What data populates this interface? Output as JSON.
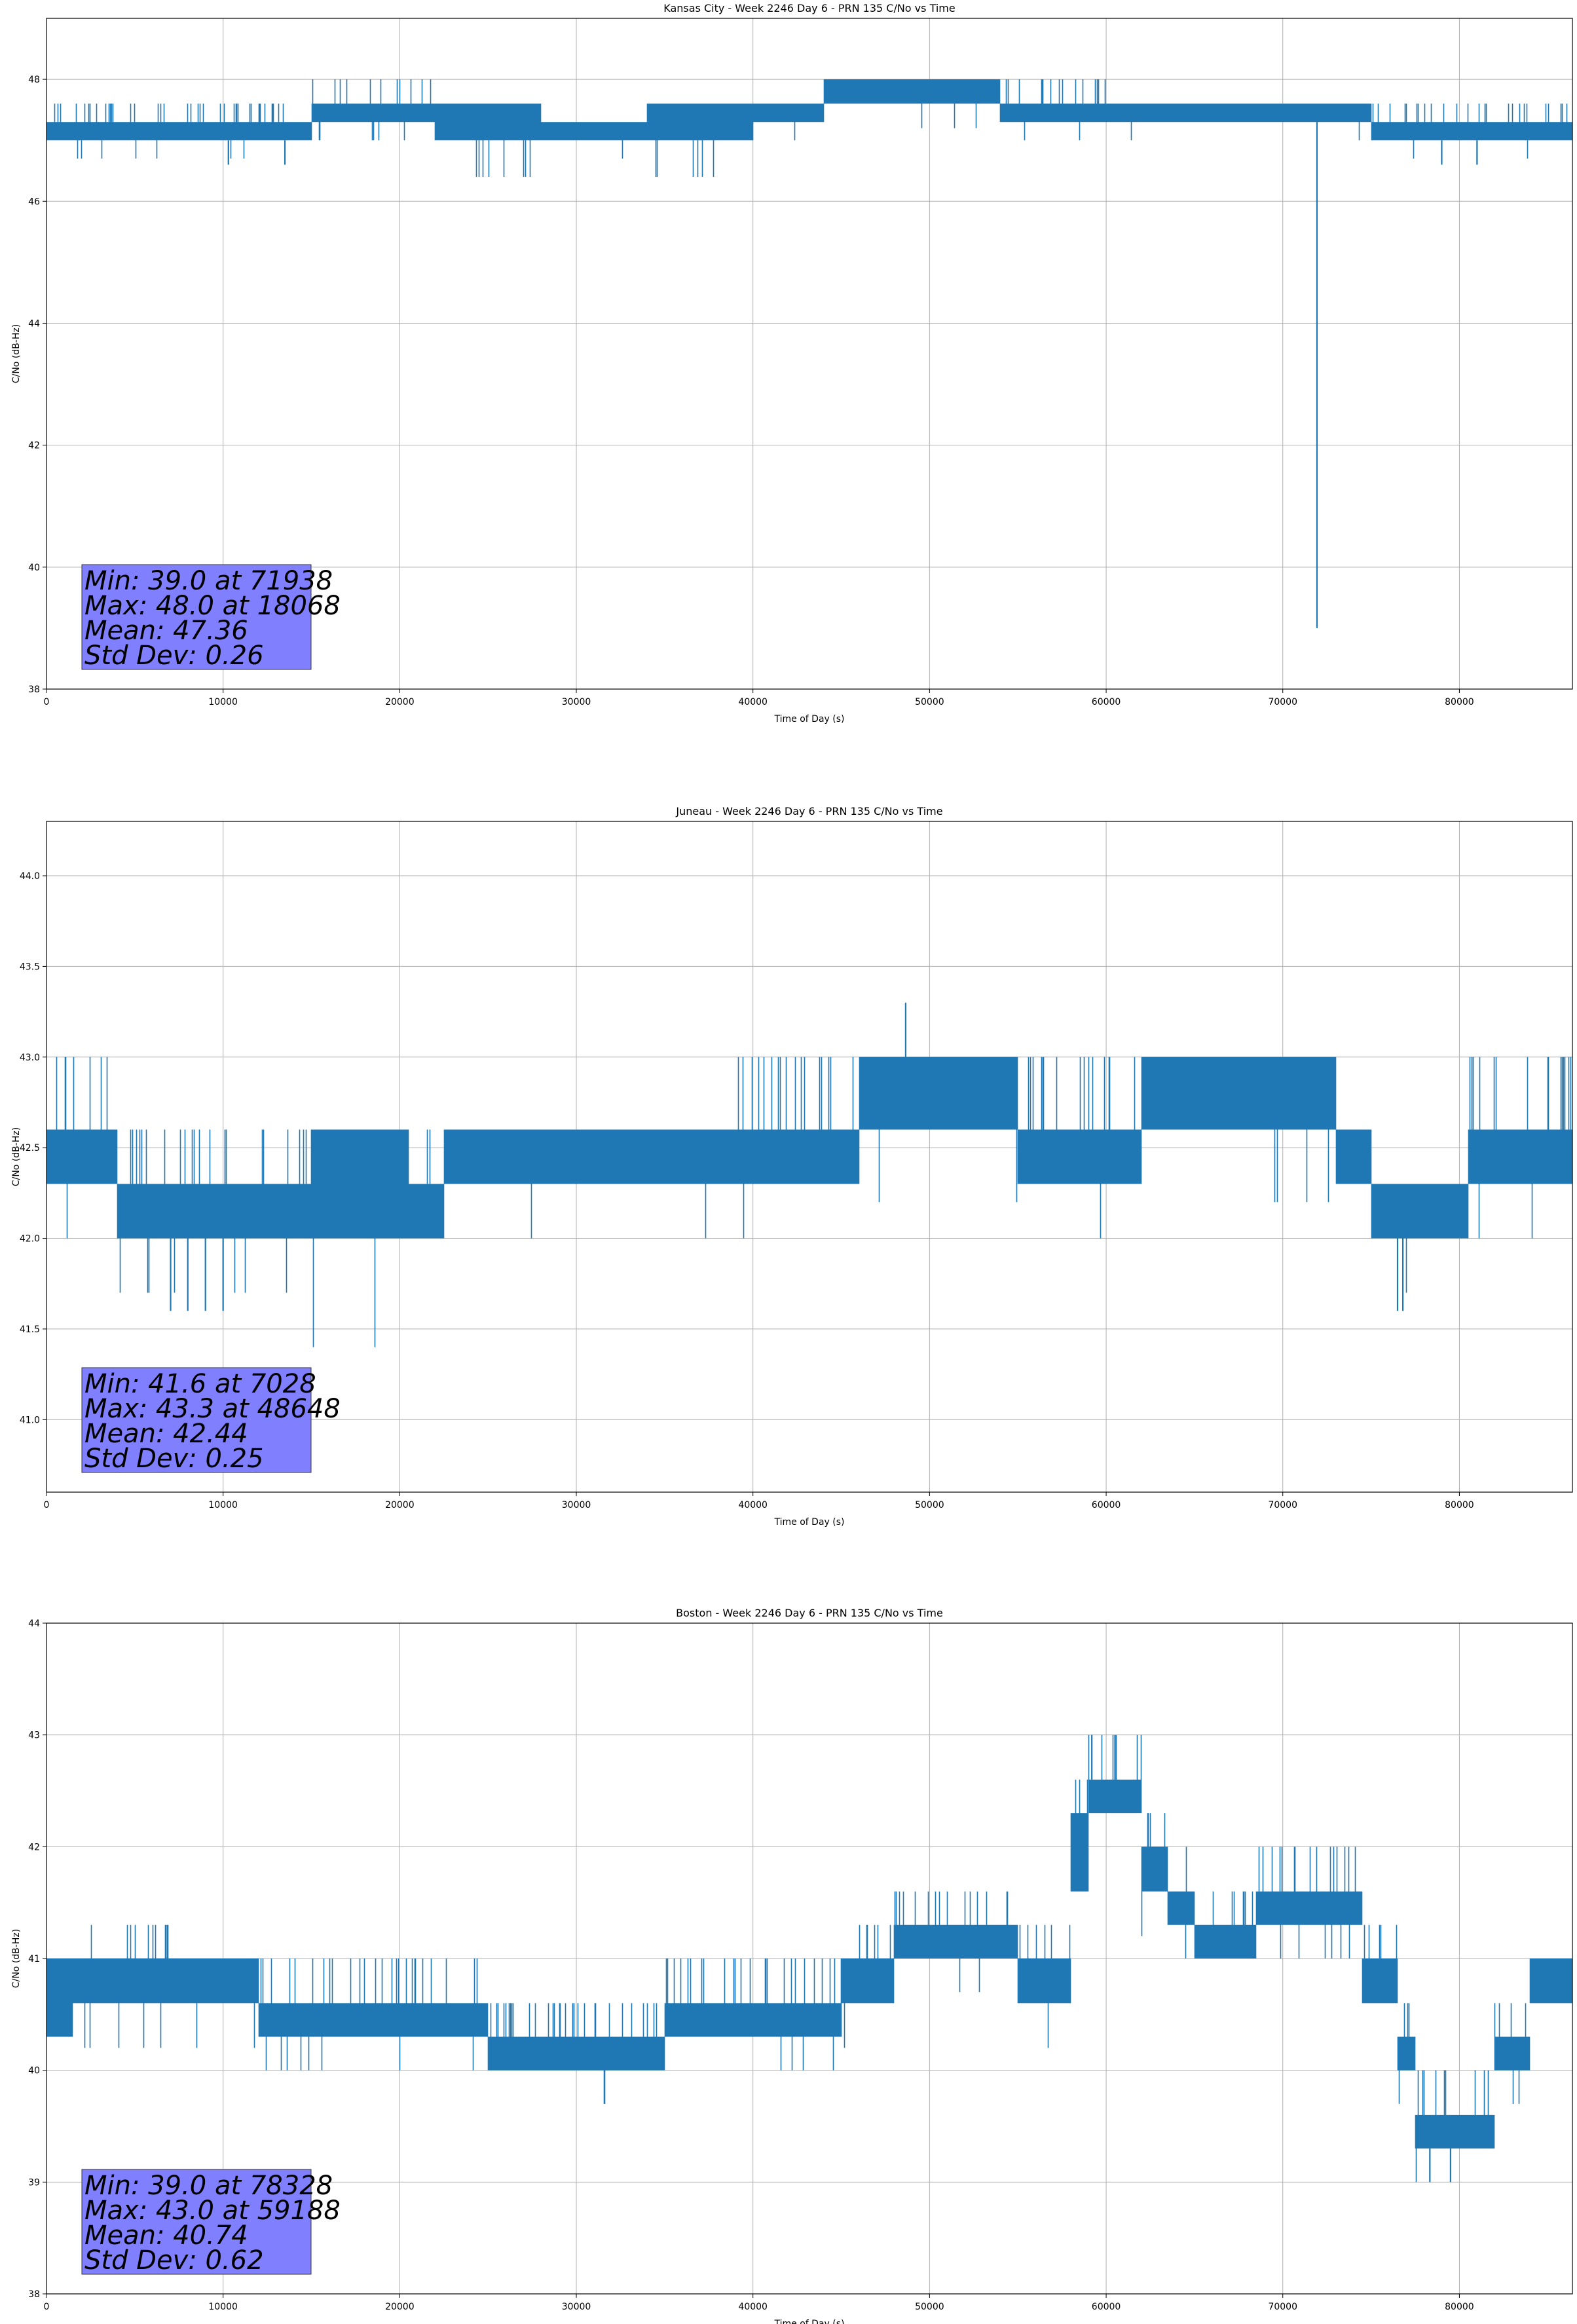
{
  "chart_data": [
    {
      "type": "line",
      "title": "Kansas City - Week 2246 Day 6 - PRN 135 C/No vs Time",
      "xlabel": "Time of Day (s)",
      "ylabel": "C/No (dB-Hz)",
      "xlim": [
        0,
        86400
      ],
      "ylim": [
        38,
        49
      ],
      "xticks": [
        0,
        10000,
        20000,
        30000,
        40000,
        50000,
        60000,
        70000,
        80000
      ],
      "yticks": [
        38,
        40,
        42,
        44,
        46,
        48
      ],
      "grid": true,
      "color": "#1f77b4",
      "stats": [
        "Min: 39.0 at 71938",
        "Max: 48.0 at 18068",
        "Mean: 47.36",
        "Std Dev: 0.26"
      ],
      "stats_box_color": "#8080ff",
      "segments": [
        {
          "x0": 0,
          "x1": 15000,
          "lo": 47.0,
          "hi": 47.3,
          "spike": 47.6
        },
        {
          "x0": 15000,
          "x1": 22000,
          "lo": 47.3,
          "hi": 47.6,
          "spike": 48.0
        },
        {
          "x0": 22000,
          "x1": 28000,
          "lo": 47.0,
          "hi": 47.6,
          "spike": 47.6
        },
        {
          "x0": 28000,
          "x1": 34000,
          "lo": 47.0,
          "hi": 47.3,
          "spike": 47.3
        },
        {
          "x0": 34000,
          "x1": 40000,
          "lo": 47.0,
          "hi": 47.6,
          "spike": 47.6
        },
        {
          "x0": 40000,
          "x1": 44000,
          "lo": 47.3,
          "hi": 47.6,
          "spike": 47.6
        },
        {
          "x0": 44000,
          "x1": 54000,
          "lo": 47.6,
          "hi": 48.0,
          "spike": 48.0
        },
        {
          "x0": 54000,
          "x1": 60000,
          "lo": 47.3,
          "hi": 47.6,
          "spike": 48.0
        },
        {
          "x0": 60000,
          "x1": 75000,
          "lo": 47.3,
          "hi": 47.6,
          "spike": 47.6
        },
        {
          "x0": 75000,
          "x1": 86400,
          "lo": 47.0,
          "hi": 47.3,
          "spike": 47.6
        }
      ],
      "extremes": [
        {
          "x": 71938,
          "y": 39.0
        },
        {
          "x": 10300,
          "y": 46.6
        },
        {
          "x": 13500,
          "y": 46.6
        },
        {
          "x": 79000,
          "y": 46.6
        },
        {
          "x": 81000,
          "y": 46.6
        }
      ]
    },
    {
      "type": "line",
      "title": "Juneau - Week 2246 Day 6 - PRN 135 C/No vs Time",
      "xlabel": "Time of Day (s)",
      "ylabel": "C/No (dB-Hz)",
      "xlim": [
        0,
        86400
      ],
      "ylim": [
        40.6,
        44.3
      ],
      "xticks": [
        0,
        10000,
        20000,
        30000,
        40000,
        50000,
        60000,
        70000,
        80000
      ],
      "yticks": [
        41.0,
        41.5,
        42.0,
        42.5,
        43.0,
        43.5,
        44.0
      ],
      "grid": true,
      "color": "#1f77b4",
      "stats": [
        "Min: 41.6 at 7028",
        "Max: 43.3 at 48648",
        "Mean: 42.44",
        "Std Dev: 0.25"
      ],
      "stats_box_color": "#8080ff",
      "segments": [
        {
          "x0": 0,
          "x1": 4000,
          "lo": 42.3,
          "hi": 42.6,
          "spike": 43.0
        },
        {
          "x0": 4000,
          "x1": 15000,
          "lo": 42.0,
          "hi": 42.3,
          "spike": 42.6
        },
        {
          "x0": 15000,
          "x1": 20500,
          "lo": 42.0,
          "hi": 42.6,
          "spike": 42.6
        },
        {
          "x0": 20500,
          "x1": 22500,
          "lo": 42.0,
          "hi": 42.3,
          "spike": 42.6
        },
        {
          "x0": 22500,
          "x1": 39000,
          "lo": 42.3,
          "hi": 42.6,
          "spike": 42.6
        },
        {
          "x0": 39000,
          "x1": 46000,
          "lo": 42.3,
          "hi": 42.6,
          "spike": 43.0
        },
        {
          "x0": 46000,
          "x1": 55000,
          "lo": 42.6,
          "hi": 43.0,
          "spike": 43.0
        },
        {
          "x0": 55000,
          "x1": 62000,
          "lo": 42.3,
          "hi": 42.6,
          "spike": 43.0
        },
        {
          "x0": 62000,
          "x1": 73000,
          "lo": 42.6,
          "hi": 43.0,
          "spike": 43.0
        },
        {
          "x0": 73000,
          "x1": 75000,
          "lo": 42.3,
          "hi": 42.6,
          "spike": 42.6
        },
        {
          "x0": 75000,
          "x1": 80500,
          "lo": 42.0,
          "hi": 42.3,
          "spike": 42.3
        },
        {
          "x0": 80500,
          "x1": 86400,
          "lo": 42.3,
          "hi": 42.6,
          "spike": 43.0
        }
      ],
      "extremes": [
        {
          "x": 48648,
          "y": 43.3
        },
        {
          "x": 7028,
          "y": 41.6
        },
        {
          "x": 8000,
          "y": 41.6
        },
        {
          "x": 9000,
          "y": 41.6
        },
        {
          "x": 10000,
          "y": 41.6
        },
        {
          "x": 76500,
          "y": 41.6
        },
        {
          "x": 76800,
          "y": 41.6
        }
      ]
    },
    {
      "type": "line",
      "title": "Boston - Week 2246 Day 6 - PRN 135 C/No vs Time",
      "xlabel": "Time of Day (s)",
      "ylabel": "C/No (dB-Hz)",
      "xlim": [
        0,
        86400
      ],
      "ylim": [
        38,
        44
      ],
      "xticks": [
        0,
        10000,
        20000,
        30000,
        40000,
        50000,
        60000,
        70000,
        80000
      ],
      "yticks": [
        38,
        39,
        40,
        41,
        42,
        43,
        44
      ],
      "grid": true,
      "color": "#1f77b4",
      "stats": [
        "Min: 39.0 at 78328",
        "Max: 43.0 at 59188",
        "Mean: 40.74",
        "Std Dev: 0.62"
      ],
      "stats_box_color": "#8080ff",
      "segments": [
        {
          "x0": 0,
          "x1": 1500,
          "lo": 40.3,
          "hi": 41.0,
          "spike": 41.0
        },
        {
          "x0": 1500,
          "x1": 7000,
          "lo": 40.6,
          "hi": 41.0,
          "spike": 41.3
        },
        {
          "x0": 7000,
          "x1": 12000,
          "lo": 40.6,
          "hi": 41.0,
          "spike": 41.0
        },
        {
          "x0": 12000,
          "x1": 25000,
          "lo": 40.3,
          "hi": 40.6,
          "spike": 41.0
        },
        {
          "x0": 25000,
          "x1": 35000,
          "lo": 40.0,
          "hi": 40.3,
          "spike": 40.6
        },
        {
          "x0": 35000,
          "x1": 45000,
          "lo": 40.3,
          "hi": 40.6,
          "spike": 41.0
        },
        {
          "x0": 45000,
          "x1": 48000,
          "lo": 40.6,
          "hi": 41.0,
          "spike": 41.3
        },
        {
          "x0": 48000,
          "x1": 55000,
          "lo": 41.0,
          "hi": 41.3,
          "spike": 41.6
        },
        {
          "x0": 55000,
          "x1": 58000,
          "lo": 40.6,
          "hi": 41.0,
          "spike": 41.3
        },
        {
          "x0": 58000,
          "x1": 59000,
          "lo": 41.6,
          "hi": 42.3,
          "spike": 42.6
        },
        {
          "x0": 59000,
          "x1": 62000,
          "lo": 42.3,
          "hi": 42.6,
          "spike": 43.0
        },
        {
          "x0": 62000,
          "x1": 63500,
          "lo": 41.6,
          "hi": 42.0,
          "spike": 42.3
        },
        {
          "x0": 63500,
          "x1": 65000,
          "lo": 41.3,
          "hi": 41.6,
          "spike": 42.0
        },
        {
          "x0": 65000,
          "x1": 68500,
          "lo": 41.0,
          "hi": 41.3,
          "spike": 41.6
        },
        {
          "x0": 68500,
          "x1": 74500,
          "lo": 41.3,
          "hi": 41.6,
          "spike": 42.0
        },
        {
          "x0": 74500,
          "x1": 76500,
          "lo": 40.6,
          "hi": 41.0,
          "spike": 41.3
        },
        {
          "x0": 76500,
          "x1": 77500,
          "lo": 40.0,
          "hi": 40.3,
          "spike": 40.6
        },
        {
          "x0": 77500,
          "x1": 82000,
          "lo": 39.3,
          "hi": 39.6,
          "spike": 40.0
        },
        {
          "x0": 82000,
          "x1": 84000,
          "lo": 40.0,
          "hi": 40.3,
          "spike": 40.6
        },
        {
          "x0": 84000,
          "x1": 86400,
          "lo": 40.6,
          "hi": 41.0,
          "spike": 41.0
        }
      ],
      "extremes": [
        {
          "x": 78328,
          "y": 39.0
        },
        {
          "x": 79500,
          "y": 39.0
        },
        {
          "x": 59188,
          "y": 43.0
        },
        {
          "x": 60500,
          "y": 43.0
        }
      ]
    }
  ]
}
